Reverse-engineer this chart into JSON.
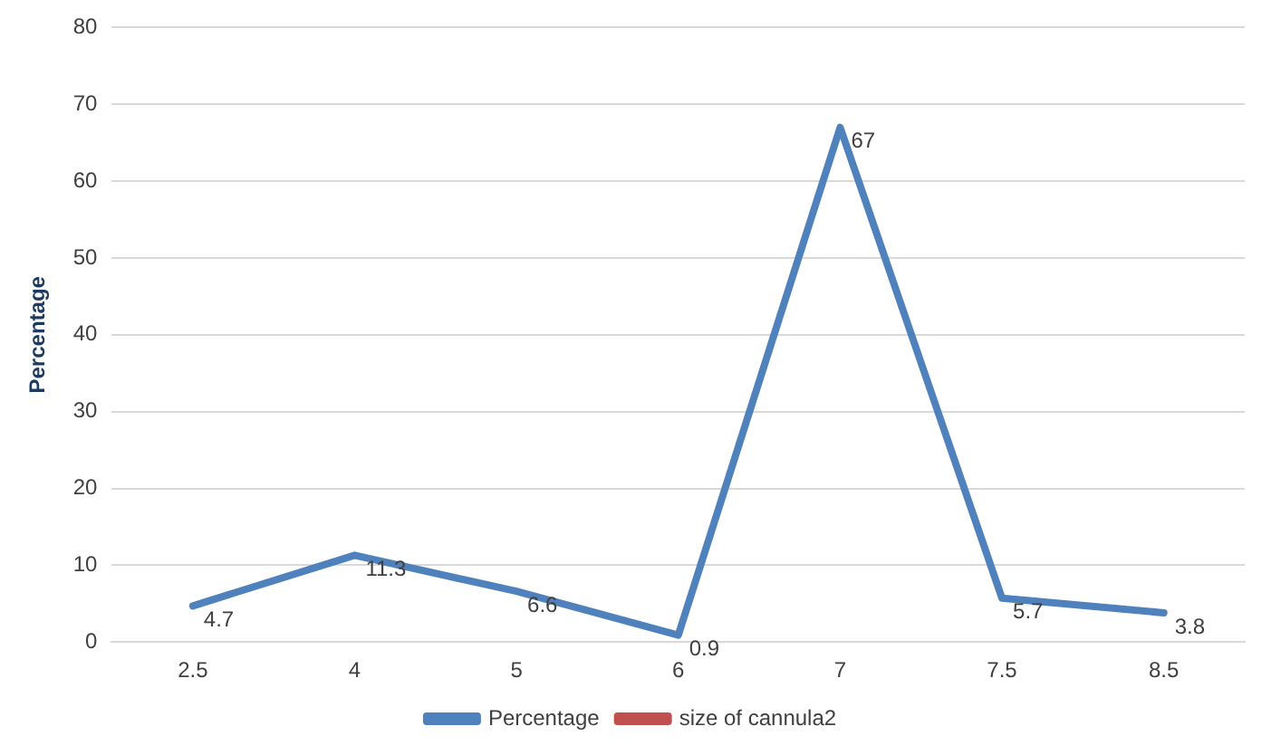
{
  "chart_data": {
    "type": "line",
    "ylabel": "Percentage",
    "categories": [
      "2.5",
      "4",
      "5",
      "6",
      "7",
      "7.5",
      "8.5"
    ],
    "series": [
      {
        "name": "Percentage",
        "color": "#4f81bd",
        "values": [
          4.7,
          11.3,
          6.6,
          0.9,
          67,
          5.7,
          3.8
        ]
      },
      {
        "name": "size of cannula2",
        "color": "#c0504d",
        "values": [
          null,
          null,
          null,
          null,
          null,
          null,
          null
        ]
      }
    ],
    "ylim": [
      0,
      80
    ],
    "yticks": [
      0,
      10,
      20,
      30,
      40,
      50,
      60,
      70,
      80
    ],
    "grid": "y",
    "legend": "bottom",
    "data_labels": true,
    "marker": "none",
    "line_style": "solid"
  }
}
